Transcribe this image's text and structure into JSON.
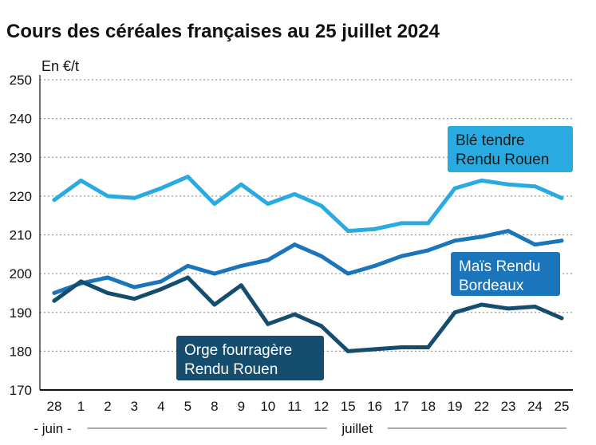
{
  "chart_data": {
    "type": "line",
    "title": "Cours des céréales françaises au 25 juillet 2024",
    "ylabel": "En €/t",
    "xlabel": "",
    "ylim": [
      170,
      250
    ],
    "yticks": [
      170,
      180,
      190,
      200,
      210,
      220,
      230,
      240,
      250
    ],
    "categories": [
      "28",
      "1",
      "2",
      "3",
      "4",
      "5",
      "8",
      "9",
      "10",
      "11",
      "12",
      "15",
      "16",
      "17",
      "18",
      "19",
      "22",
      "23",
      "24",
      "25"
    ],
    "months": [
      {
        "label": "- juin -",
        "from": 0,
        "to": 0
      },
      {
        "label": "juillet",
        "from": 1,
        "to": 19
      }
    ],
    "grid": true,
    "series": [
      {
        "name": "Blé tendre Rendu Rouen",
        "label_lines": [
          "Blé tendre",
          "Rendu Rouen"
        ],
        "color": "#29abe2",
        "label_text_color": "#1a1a1a",
        "values": [
          219,
          224,
          220,
          219.5,
          222,
          225,
          218,
          223,
          218,
          220.5,
          217.5,
          211,
          211.5,
          213,
          213,
          222,
          224,
          223,
          222.5,
          219.5
        ]
      },
      {
        "name": "Maïs Rendu Bordeaux",
        "label_lines": [
          "Maïs Rendu",
          "Bordeaux"
        ],
        "color": "#1b75bb",
        "label_text_color": "#ffffff",
        "values": [
          195,
          197.5,
          199,
          196.5,
          198,
          202,
          200,
          202,
          203.5,
          207.5,
          204.5,
          200,
          202,
          204.5,
          206,
          208.5,
          209.5,
          211,
          207.5,
          208.5
        ]
      },
      {
        "name": "Orge fourragère Rendu Rouen",
        "label_lines": [
          "Orge fourragère",
          "Rendu Rouen"
        ],
        "color": "#154d6e",
        "label_text_color": "#ffffff",
        "values": [
          193,
          198,
          195,
          193.5,
          196,
          199,
          192,
          197,
          187,
          189.5,
          186.5,
          180,
          180.5,
          181,
          181,
          190,
          192,
          191,
          191.5,
          188.5
        ]
      }
    ]
  }
}
